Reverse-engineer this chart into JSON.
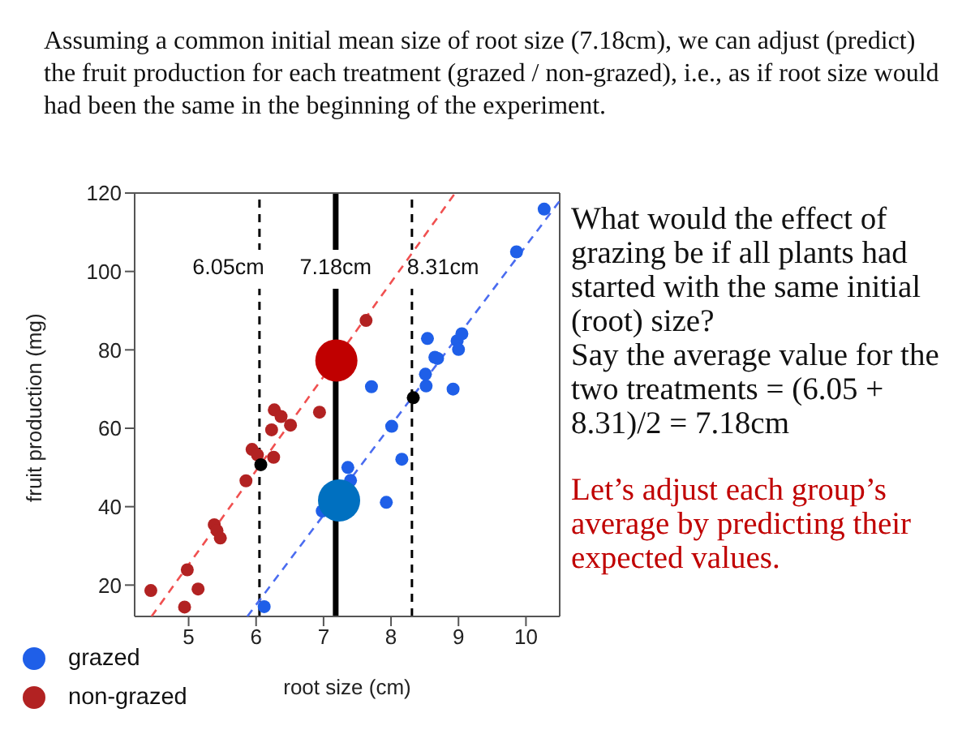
{
  "chart_data": {
    "type": "scatter",
    "title": "Assuming a common initial mean size of root size (7.18cm), we can adjust (predict) the fruit production for each treatment (grazed / non-grazed), i.e., as if root size would had been the same in the beginning of the experiment.",
    "xlabel": "root size (cm)",
    "ylabel": "fruit production (mg)",
    "xlim": [
      4.2,
      10.5
    ],
    "xticks": [
      5,
      6,
      7,
      8,
      9,
      10
    ],
    "ylim": [
      12,
      120
    ],
    "yticks": [
      20,
      40,
      60,
      80,
      100,
      120
    ],
    "legend": "bottom left",
    "marker": "circle",
    "series": [
      {
        "type": "line",
        "color": "#f05050",
        "line_style": "dashed",
        "marker": "none",
        "x": [
          4.45,
          8.95
        ],
        "values": [
          12,
          120
        ]
      },
      {
        "type": "line",
        "color": "#4a6cf0",
        "line_style": "dashed",
        "marker": "none",
        "x": [
          5.87,
          10.5
        ],
        "values": [
          12,
          118
        ]
      },
      {
        "name": "grazed",
        "color": "#1f5fe8",
        "x": [
          6.12,
          6.98,
          7.36,
          7.4,
          7.93,
          7.71,
          8.01,
          8.16,
          8.52,
          8.51,
          8.54,
          8.65,
          8.69,
          8.92,
          8.98,
          9.0,
          9.05,
          9.86,
          10.27
        ],
        "values": [
          14.5,
          38.9,
          50.0,
          46.7,
          41.1,
          70.6,
          60.5,
          52.1,
          70.8,
          73.8,
          82.9,
          78.1,
          77.8,
          70.0,
          82.3,
          80.1,
          84.1,
          105.0,
          115.9
        ]
      },
      {
        "name": "non-grazed",
        "color": "#b22222",
        "x": [
          4.44,
          4.94,
          5.14,
          4.98,
          5.38,
          5.42,
          5.47,
          5.85,
          5.94,
          6.02,
          6.26,
          6.23,
          6.27,
          6.37,
          6.51,
          6.94,
          7.63
        ],
        "values": [
          18.6,
          14.4,
          19.0,
          23.9,
          35.4,
          33.9,
          32.0,
          46.6,
          54.6,
          53.2,
          52.6,
          59.6,
          64.7,
          63.0,
          60.8,
          64.1,
          87.5
        ]
      },
      {
        "color": "#000000",
        "x": [
          6.07,
          8.33
        ],
        "values": [
          50.7,
          67.8
        ]
      },
      {
        "color": "#c00000",
        "x": [
          7.19
        ],
        "values": [
          77.3
        ]
      },
      {
        "color": "#0070c0",
        "x": [
          7.23
        ],
        "values": [
          41.6
        ]
      }
    ],
    "ref_lines": [
      {
        "axis": "x",
        "value": 6.05,
        "label": "6.05cm",
        "color": "#000000",
        "line_style": "dashed"
      },
      {
        "axis": "x",
        "value": 7.18,
        "label": "7.18cm",
        "color": "#000000",
        "line_style": "solid"
      },
      {
        "axis": "x",
        "value": 8.31,
        "label": "8.31cm",
        "color": "#000000",
        "line_style": "dashed"
      }
    ],
    "annotations": [
      "What would the effect of grazing be if all plants had started with the same initial (root) size?",
      "Say the average value for the two treatments = (6.05 + 8.31)/2 = 7.18cm",
      "Let’s adjust each group’s average by predicting their expected values."
    ]
  }
}
